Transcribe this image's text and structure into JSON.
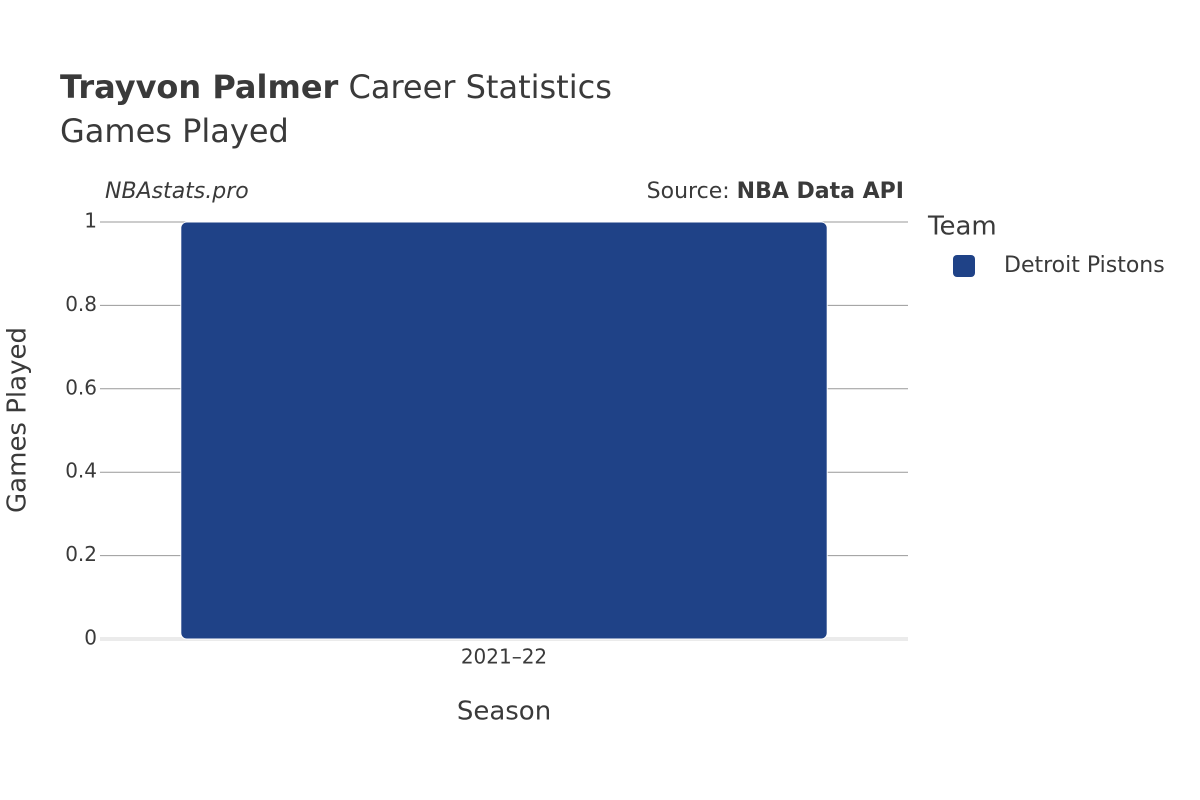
{
  "chart_data": {
    "type": "bar",
    "title": "Trayvon Palmer",
    "title_rest": "Career Statistics",
    "subtitle": "Games Played",
    "watermark": "NBAstats.pro",
    "source_label": "Source:",
    "source": "NBA Data API",
    "x_label": "Season",
    "y_label": "Games Played",
    "legend_title": "Team",
    "categories": [
      "2021–22"
    ],
    "series": [
      {
        "name": "Detroit Pistons",
        "color": "#1f4287",
        "values": [
          1
        ]
      }
    ],
    "ylim": [
      0,
      1
    ],
    "yticks": [
      0,
      0.2,
      0.4,
      0.6,
      0.8,
      1
    ],
    "grid": true
  }
}
